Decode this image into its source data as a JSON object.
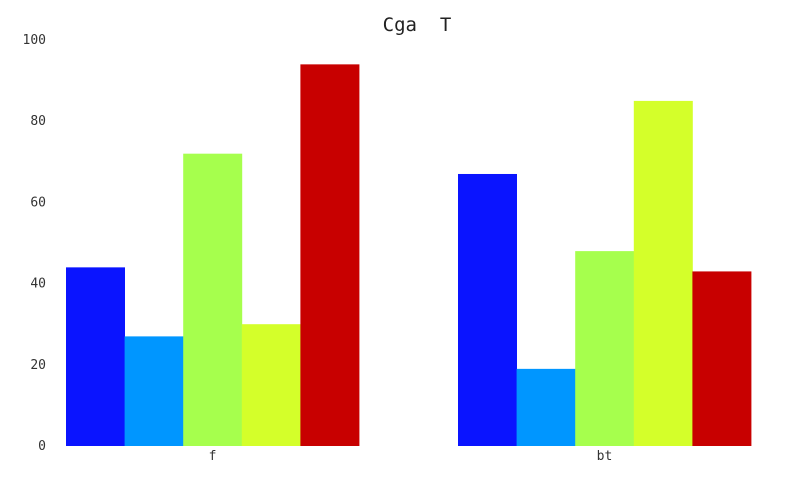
{
  "chart_data": {
    "type": "bar",
    "title": "Cga  T",
    "xlabel": "",
    "ylabel": "",
    "categories": [
      "f",
      "bt"
    ],
    "series": [
      {
        "values": [
          44,
          67
        ],
        "color": "#0a14ff"
      },
      {
        "values": [
          27,
          19
        ],
        "color": "#0096ff"
      },
      {
        "values": [
          72,
          48
        ],
        "color": "#a6ff4d"
      },
      {
        "values": [
          30,
          85
        ],
        "color": "#d4ff2a"
      },
      {
        "values": [
          94,
          43
        ],
        "color": "#c80000"
      }
    ],
    "ylim": [
      0,
      100
    ],
    "yticks": [
      0,
      20,
      40,
      60,
      80,
      100
    ],
    "grid": false,
    "legend": "none"
  }
}
